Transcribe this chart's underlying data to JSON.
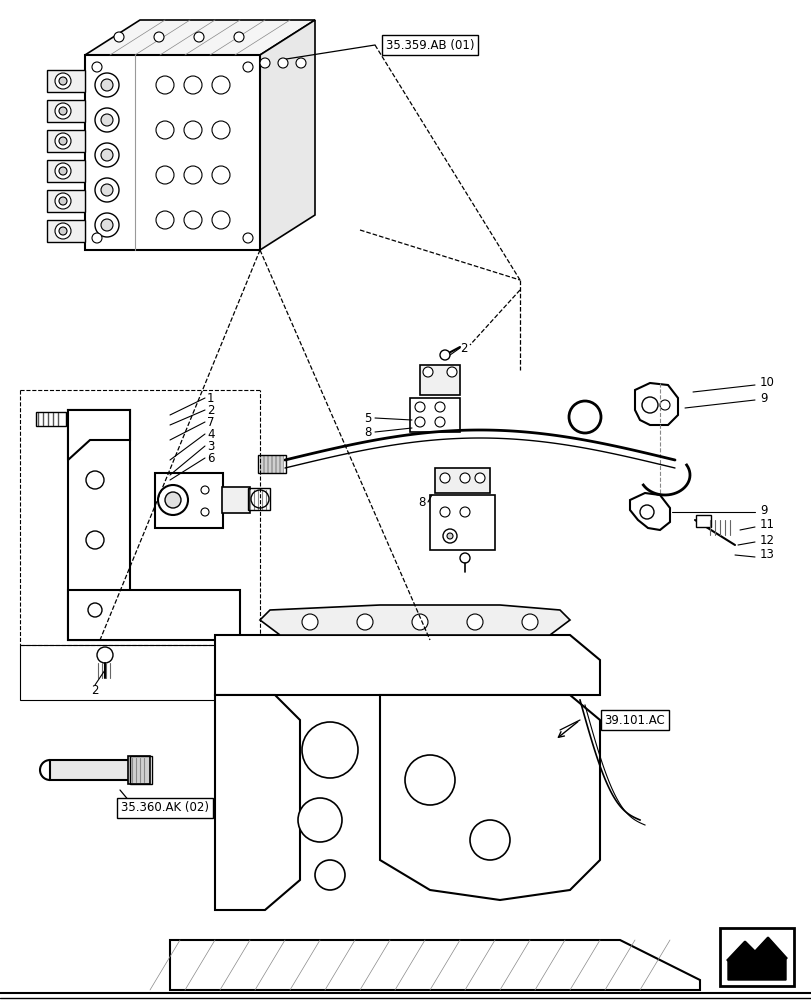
{
  "background_color": "#ffffff",
  "line_color": "#000000",
  "labels": {
    "ref1": "35.359.AB (01)",
    "ref2": "35.360.AK (02)",
    "ref3": "39.101.AC"
  },
  "figsize": [
    8.12,
    10.0
  ],
  "dpi": 100
}
